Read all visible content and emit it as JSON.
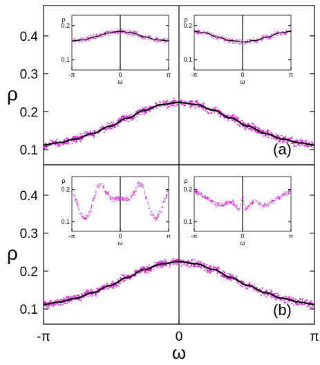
{
  "chart_data": [
    {
      "id": "panel-a",
      "type": "scatter",
      "panel_label": "(a)",
      "ylabel": "ρ",
      "xlabel": "",
      "xlim": [
        -3.14159,
        3.14159
      ],
      "ylim": [
        0.06,
        0.48
      ],
      "yticks": [
        0.1,
        0.2,
        0.3,
        0.4
      ],
      "ytick_labels": [
        "0.1",
        "0.2",
        "0.3",
        "0.4"
      ],
      "xtick_labels": [],
      "series": [
        {
          "kind": "points",
          "color": "#e021e0",
          "points": [
            [
              -3.14,
              0.112
            ],
            [
              -2.8,
              0.118
            ],
            [
              -2.4,
              0.128
            ],
            [
              -2.0,
              0.143
            ],
            [
              -1.6,
              0.162
            ],
            [
              -1.2,
              0.183
            ],
            [
              -0.8,
              0.204
            ],
            [
              -0.4,
              0.219
            ],
            [
              0.0,
              0.225
            ],
            [
              0.4,
              0.219
            ],
            [
              0.8,
              0.204
            ],
            [
              1.2,
              0.183
            ],
            [
              1.6,
              0.162
            ],
            [
              2.0,
              0.143
            ],
            [
              2.4,
              0.128
            ],
            [
              2.8,
              0.118
            ],
            [
              3.14,
              0.112
            ]
          ]
        },
        {
          "kind": "line",
          "color": "#000000",
          "points": [
            [
              -3.14,
              0.112
            ],
            [
              -2.8,
              0.118
            ],
            [
              -2.4,
              0.128
            ],
            [
              -2.0,
              0.143
            ],
            [
              -1.6,
              0.162
            ],
            [
              -1.2,
              0.183
            ],
            [
              -0.8,
              0.204
            ],
            [
              -0.4,
              0.219
            ],
            [
              0.0,
              0.225
            ],
            [
              0.4,
              0.219
            ],
            [
              0.8,
              0.204
            ],
            [
              1.2,
              0.183
            ],
            [
              1.6,
              0.162
            ],
            [
              2.0,
              0.143
            ],
            [
              2.4,
              0.128
            ],
            [
              2.8,
              0.118
            ],
            [
              3.14,
              0.112
            ]
          ]
        }
      ],
      "insets": [
        {
          "id": "inset-a-left",
          "type": "scatter",
          "ylabel": "ρ",
          "xlabel": "ω",
          "xlim": [
            -3.14159,
            3.14159
          ],
          "ylim": [
            0.07,
            0.23
          ],
          "yticks": [
            0.1,
            0.2
          ],
          "ytick_labels": [
            "0.1",
            "0.2"
          ],
          "xtick_labels": [
            "-π",
            "0",
            "π"
          ],
          "series": [
            {
              "kind": "points",
              "color": "#e021e0",
              "points": [
                [
                  -3.14,
                  0.155
                ],
                [
                  -2.4,
                  0.158
                ],
                [
                  -1.6,
                  0.167
                ],
                [
                  -0.8,
                  0.178
                ],
                [
                  0.0,
                  0.183
                ],
                [
                  0.8,
                  0.178
                ],
                [
                  1.6,
                  0.167
                ],
                [
                  2.4,
                  0.158
                ],
                [
                  3.14,
                  0.155
                ]
              ]
            },
            {
              "kind": "line",
              "color": "#000000",
              "points": [
                [
                  -3.14,
                  0.155
                ],
                [
                  -2.4,
                  0.158
                ],
                [
                  -1.6,
                  0.167
                ],
                [
                  -0.8,
                  0.178
                ],
                [
                  0.0,
                  0.183
                ],
                [
                  0.8,
                  0.178
                ],
                [
                  1.6,
                  0.167
                ],
                [
                  2.4,
                  0.158
                ],
                [
                  3.14,
                  0.155
                ]
              ]
            }
          ]
        },
        {
          "id": "inset-a-right",
          "type": "scatter",
          "ylabel": "ρ",
          "xlabel": "ω",
          "xlim": [
            -3.14159,
            3.14159
          ],
          "ylim": [
            0.07,
            0.23
          ],
          "yticks": [
            0.1,
            0.2
          ],
          "ytick_labels": [
            "0.1",
            "0.2"
          ],
          "xtick_labels": [
            "-π",
            "0",
            "π"
          ],
          "series": [
            {
              "kind": "points",
              "color": "#e021e0",
              "points": [
                [
                  -3.14,
                  0.183
                ],
                [
                  -2.4,
                  0.178
                ],
                [
                  -1.6,
                  0.166
                ],
                [
                  -0.8,
                  0.156
                ],
                [
                  0.0,
                  0.152
                ],
                [
                  0.8,
                  0.156
                ],
                [
                  1.6,
                  0.166
                ],
                [
                  2.4,
                  0.178
                ],
                [
                  3.14,
                  0.183
                ]
              ]
            },
            {
              "kind": "line",
              "color": "#000000",
              "points": [
                [
                  -3.14,
                  0.183
                ],
                [
                  -2.4,
                  0.178
                ],
                [
                  -1.6,
                  0.166
                ],
                [
                  -0.8,
                  0.156
                ],
                [
                  0.0,
                  0.152
                ],
                [
                  0.8,
                  0.156
                ],
                [
                  1.6,
                  0.166
                ],
                [
                  2.4,
                  0.178
                ],
                [
                  3.14,
                  0.183
                ]
              ]
            }
          ]
        }
      ]
    },
    {
      "id": "panel-b",
      "type": "scatter",
      "panel_label": "(b)",
      "ylabel": "ρ",
      "xlabel": "ω",
      "xlim": [
        -3.14159,
        3.14159
      ],
      "ylim": [
        0.06,
        0.48
      ],
      "yticks": [
        0.1,
        0.2,
        0.3,
        0.4
      ],
      "ytick_labels": [
        "0.1",
        "0.2",
        "0.3",
        "0.4"
      ],
      "xtick_labels": [
        "-π",
        "0",
        "π"
      ],
      "series": [
        {
          "kind": "points",
          "color": "#e021e0",
          "points": [
            [
              -3.14,
              0.112
            ],
            [
              -2.8,
              0.118
            ],
            [
              -2.4,
              0.128
            ],
            [
              -2.0,
              0.143
            ],
            [
              -1.6,
              0.162
            ],
            [
              -1.2,
              0.183
            ],
            [
              -0.8,
              0.204
            ],
            [
              -0.4,
              0.219
            ],
            [
              0.0,
              0.225
            ],
            [
              0.4,
              0.219
            ],
            [
              0.8,
              0.204
            ],
            [
              1.2,
              0.183
            ],
            [
              1.6,
              0.162
            ],
            [
              2.0,
              0.143
            ],
            [
              2.4,
              0.128
            ],
            [
              2.8,
              0.118
            ],
            [
              3.14,
              0.112
            ]
          ]
        },
        {
          "kind": "line",
          "color": "#000000",
          "points": [
            [
              -3.14,
              0.112
            ],
            [
              -2.8,
              0.118
            ],
            [
              -2.4,
              0.128
            ],
            [
              -2.0,
              0.143
            ],
            [
              -1.6,
              0.162
            ],
            [
              -1.2,
              0.183
            ],
            [
              -0.8,
              0.204
            ],
            [
              -0.4,
              0.219
            ],
            [
              0.0,
              0.225
            ],
            [
              0.4,
              0.219
            ],
            [
              0.8,
              0.204
            ],
            [
              1.2,
              0.183
            ],
            [
              1.6,
              0.162
            ],
            [
              2.0,
              0.143
            ],
            [
              2.4,
              0.128
            ],
            [
              2.8,
              0.118
            ],
            [
              3.14,
              0.112
            ]
          ]
        }
      ],
      "insets": [
        {
          "id": "inset-b-left",
          "type": "scatter",
          "ylabel": "ρ",
          "xlabel": "ω",
          "xlim": [
            -3.14159,
            3.14159
          ],
          "ylim": [
            0.07,
            0.24
          ],
          "yticks": [
            0.1,
            0.2
          ],
          "ytick_labels": [
            "0.1",
            "0.2"
          ],
          "xtick_labels": [
            "-π",
            "0",
            "π"
          ],
          "series": [
            {
              "kind": "points",
              "color": "#e021e0",
              "points": [
                [
                  -3.14,
                  0.198
                ],
                [
                  -2.9,
                  0.168
                ],
                [
                  -2.6,
                  0.128
                ],
                [
                  -2.3,
                  0.108
                ],
                [
                  -2.0,
                  0.125
                ],
                [
                  -1.7,
                  0.172
                ],
                [
                  -1.45,
                  0.212
                ],
                [
                  -1.2,
                  0.216
                ],
                [
                  -0.9,
                  0.19
                ],
                [
                  -0.6,
                  0.172
                ],
                [
                  -0.3,
                  0.17
                ],
                [
                  0.0,
                  0.173
                ],
                [
                  0.3,
                  0.17
                ],
                [
                  0.6,
                  0.172
                ],
                [
                  0.9,
                  0.19
                ],
                [
                  1.2,
                  0.216
                ],
                [
                  1.45,
                  0.212
                ],
                [
                  1.7,
                  0.172
                ],
                [
                  2.0,
                  0.125
                ],
                [
                  2.3,
                  0.108
                ],
                [
                  2.6,
                  0.128
                ],
                [
                  2.9,
                  0.168
                ],
                [
                  3.14,
                  0.198
                ]
              ]
            }
          ]
        },
        {
          "id": "inset-b-right",
          "type": "scatter",
          "ylabel": "ρ",
          "xlabel": "ω",
          "xlim": [
            -3.14159,
            3.14159
          ],
          "ylim": [
            0.07,
            0.24
          ],
          "yticks": [
            0.1,
            0.2
          ],
          "ytick_labels": [
            "0.1",
            "0.2"
          ],
          "xtick_labels": [
            "-π",
            "0",
            "π"
          ],
          "series": [
            {
              "kind": "points",
              "color": "#e021e0",
              "points": [
                [
                  -3.14,
                  0.195
                ],
                [
                  -2.8,
                  0.188
                ],
                [
                  -2.4,
                  0.176
                ],
                [
                  -2.0,
                  0.164
                ],
                [
                  -1.6,
                  0.152
                ],
                [
                  -1.3,
                  0.15
                ],
                [
                  -1.0,
                  0.158
                ],
                [
                  -0.7,
                  0.163
                ],
                [
                  -0.45,
                  0.15
                ],
                [
                  -0.2,
                  0.138
                ],
                [
                  0.0,
                  0.175
                ],
                [
                  0.2,
                  0.138
                ],
                [
                  0.45,
                  0.15
                ],
                [
                  0.7,
                  0.163
                ],
                [
                  1.0,
                  0.158
                ],
                [
                  1.3,
                  0.15
                ],
                [
                  1.6,
                  0.152
                ],
                [
                  2.0,
                  0.164
                ],
                [
                  2.4,
                  0.176
                ],
                [
                  2.8,
                  0.188
                ],
                [
                  3.14,
                  0.195
                ]
              ]
            }
          ]
        }
      ]
    }
  ]
}
